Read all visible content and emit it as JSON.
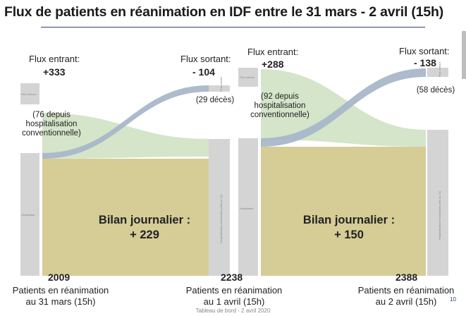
{
  "title": "Flux de patients en réanimation en IDF entre le 31 mars - 2 avril (15h)",
  "panel1": {
    "flux_entrant_label": "Flux entrant:",
    "flux_entrant_value": "+333",
    "flux_entrant_note": "(76 depuis\nhospitalisation\nconventionnelle)",
    "flux_sortant_label": "Flux sortant:",
    "flux_sortant_value": "- 104",
    "flux_sortant_note": "(29 décès)",
    "bilan": "Bilan journalier :\n+ 229",
    "start_count": "2009",
    "start_caption": "Patients en réanimation\nau 31 mars (15h)",
    "end_count": "2238",
    "end_caption": "Patients en réanimation\nau 1 avril (15h)"
  },
  "panel2": {
    "flux_entrant_label": "Flux entrant:",
    "flux_entrant_value": "+288",
    "flux_entrant_note": "(92 depuis\nhospitalisation\nconventionnelle)",
    "flux_sortant_label": "Flux sortant:",
    "flux_sortant_value": "- 138",
    "flux_sortant_note": "(58 décès)",
    "bilan": "Bilan journalier :\n+ 150",
    "end_count": "2388",
    "end_caption": "Patients en réanimation\nau 2 avril (15h)"
  },
  "node_labels": {
    "flux_entrant": "Flux entrant",
    "flux_sortant": "Flux sortant",
    "hospitalise": "Hospitalisé",
    "hospitalisation_reanimation": "Hospitalisation réanimation (dès au J1)"
  },
  "footer": "Tableau de bord - 2 avril 2020",
  "page_number": "10",
  "colors": {
    "node_gray": "#d4d4d4",
    "stock_olive": "#d6cc96",
    "incoming_green": "#cfe2c4",
    "outgoing_blue": "#a9b7c9",
    "title_rule": "#2e3f73"
  }
}
